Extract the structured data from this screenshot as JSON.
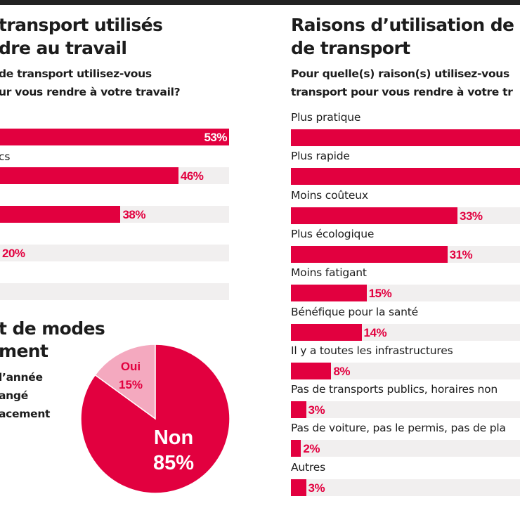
{
  "colors": {
    "accent": "#e2003f",
    "track": "#f1efef",
    "pie_light": "#f4a9bf",
    "title": "#1c1c1c",
    "topbar": "#222222"
  },
  "left_panel": {
    "title_line1": "transport utilisés",
    "title_line2": "dre au travail",
    "subtitle_line1": "de transport utilisez-vous",
    "subtitle_line2": "ur vous rendre à votre travail?"
  },
  "pie_panel": {
    "title_line1": "t de modes",
    "title_line2": "ment",
    "subtitle_line1": "l’année",
    "subtitle_line2": "angé",
    "subtitle_line3": "acement"
  },
  "right_panel": {
    "title_line1": "Raisons d’utilisation de",
    "title_line2": "de transport",
    "subtitle_line1": "Pour quelle(s) raison(s) utilisez-vous",
    "subtitle_line2": "transport pour vous rendre à votre tr"
  },
  "chart_data": [
    {
      "type": "bar",
      "orientation": "horizontal",
      "title": "…transport utilisés …dre au travail",
      "question": "…de transport utilisez-vous …ur vous rendre à votre travail?",
      "xlim": [
        0,
        100
      ],
      "unit": "%",
      "categories": [
        "",
        "cs",
        "",
        "",
        ""
      ],
      "values": [
        53,
        46,
        38,
        20,
        null
      ],
      "value_labels": [
        "53%",
        "46%",
        "38%",
        "20%",
        ""
      ],
      "note": "Category labels are cropped at the left edge; only the fragment \"cs\" is visible. The fifth bar's value is cut off."
    },
    {
      "type": "pie",
      "title": "…t de modes …ment",
      "question": "…l’année …angé …acement",
      "slices": [
        {
          "label": "Oui",
          "value": 15,
          "value_label": "15%"
        },
        {
          "label": "Non",
          "value": 85,
          "value_label": "85%"
        }
      ]
    },
    {
      "type": "bar",
      "orientation": "horizontal",
      "title": "Raisons d’utilisation de … de transport",
      "question": "Pour quelle(s) raison(s) utilisez-vous … transport pour vous rendre à votre tr…",
      "xlim": [
        0,
        100
      ],
      "unit": "%",
      "categories": [
        "Plus pratique",
        "Plus rapide",
        "Moins coûteux",
        "Plus écologique",
        "Moins fatigant",
        "Bénéfique pour la santé",
        "Il y a toutes les infrastructures",
        "Pas de transports publics, horaires non",
        "Pas de voiture, pas le permis, pas de pla",
        "Autres"
      ],
      "values": [
        null,
        null,
        33,
        31,
        15,
        14,
        8,
        3,
        2,
        3
      ],
      "value_labels": [
        "",
        "",
        "33%",
        "31%",
        "15%",
        "14%",
        "8%",
        "3%",
        "2%",
        "3%"
      ],
      "note": "The first two bars extend past the right edge; their values are not visible."
    }
  ]
}
